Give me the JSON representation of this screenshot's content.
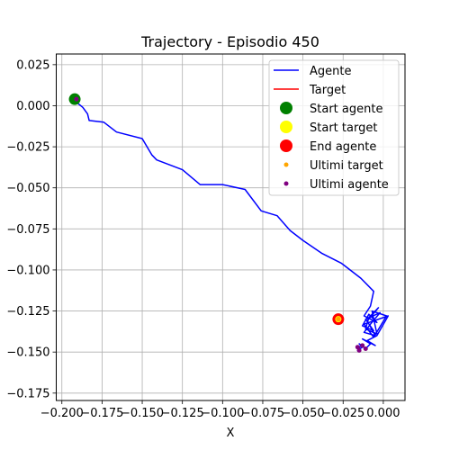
{
  "chart_data": {
    "type": "line",
    "title": "Trajectory - Episodio 450",
    "xlabel": "X",
    "ylabel": "",
    "xlim": [
      -0.2035,
      0.0135
    ],
    "ylim": [
      -0.1795,
      0.0315
    ],
    "grid": true,
    "legend_placement": "top-right",
    "x_ticks": [
      -0.2,
      -0.175,
      -0.15,
      -0.125,
      -0.1,
      -0.075,
      -0.05,
      -0.025,
      0.0
    ],
    "x_tick_labels": [
      "−0.200",
      "−0.175",
      "−0.150",
      "−0.125",
      "−0.100",
      "−0.075",
      "−0.050",
      "−0.025",
      "0.000"
    ],
    "y_ticks": [
      0.025,
      0.0,
      -0.025,
      -0.05,
      -0.075,
      -0.1,
      -0.125,
      -0.15,
      -0.175
    ],
    "y_tick_labels": [
      "0.025",
      "0.000",
      "−0.025",
      "−0.050",
      "−0.075",
      "−0.100",
      "−0.125",
      "−0.150",
      "−0.175"
    ],
    "series": [
      {
        "name": "Agente",
        "kind": "line",
        "color": "#0000ff",
        "x": [
          -0.192,
          -0.187,
          -0.184,
          -0.183,
          -0.174,
          -0.166,
          -0.15,
          -0.144,
          -0.141,
          -0.125,
          -0.114,
          -0.1,
          -0.086,
          -0.076,
          -0.066,
          -0.058,
          -0.05,
          -0.038,
          -0.026,
          -0.014,
          -0.006,
          -0.008,
          -0.012,
          -0.004,
          -0.009,
          -0.013,
          -0.006,
          -0.011,
          -0.002,
          -0.008,
          -0.012,
          -0.005,
          -0.01,
          -0.003,
          -0.009,
          -0.011,
          -0.004,
          -0.007,
          0.002,
          -0.006,
          -0.012,
          0.003,
          -0.004,
          -0.01,
          -0.005,
          -0.013,
          -0.008,
          -0.011,
          -0.015,
          -0.013,
          -0.016,
          -0.014
        ],
        "y": [
          0.003,
          -0.001,
          -0.005,
          -0.009,
          -0.01,
          -0.016,
          -0.02,
          -0.03,
          -0.033,
          -0.039,
          -0.048,
          -0.048,
          -0.051,
          -0.064,
          -0.067,
          -0.076,
          -0.082,
          -0.09,
          -0.096,
          -0.105,
          -0.113,
          -0.122,
          -0.128,
          -0.132,
          -0.127,
          -0.134,
          -0.137,
          -0.13,
          -0.126,
          -0.133,
          -0.138,
          -0.14,
          -0.131,
          -0.123,
          -0.129,
          -0.136,
          -0.139,
          -0.125,
          -0.128,
          -0.141,
          -0.133,
          -0.128,
          -0.14,
          -0.143,
          -0.146,
          -0.142,
          -0.145,
          -0.148,
          -0.145,
          -0.147,
          -0.149,
          -0.146
        ]
      },
      {
        "name": "Target",
        "kind": "line",
        "color": "#ff0000",
        "x": [
          -0.028
        ],
        "y": [
          -0.13
        ]
      },
      {
        "name": "Start agente",
        "kind": "marker",
        "color": "#008000",
        "x": [
          -0.192
        ],
        "y": [
          0.004
        ]
      },
      {
        "name": "Start target",
        "kind": "marker",
        "color": "#ffff00",
        "x": [
          -0.028
        ],
        "y": [
          -0.13
        ]
      },
      {
        "name": "End agente",
        "kind": "marker",
        "color": "#ff0000",
        "x": [
          -0.028
        ],
        "y": [
          -0.13
        ]
      },
      {
        "name": "Ultimi target",
        "kind": "scatter",
        "color": "#ffa500",
        "x": [
          -0.028,
          -0.028
        ],
        "y": [
          -0.13,
          -0.13
        ]
      },
      {
        "name": "Ultimi agente",
        "kind": "scatter",
        "color": "#800080",
        "x": [
          -0.191,
          -0.016,
          -0.013,
          -0.011,
          -0.015
        ],
        "y": [
          0.004,
          -0.147,
          -0.146,
          -0.148,
          -0.149
        ]
      }
    ]
  }
}
